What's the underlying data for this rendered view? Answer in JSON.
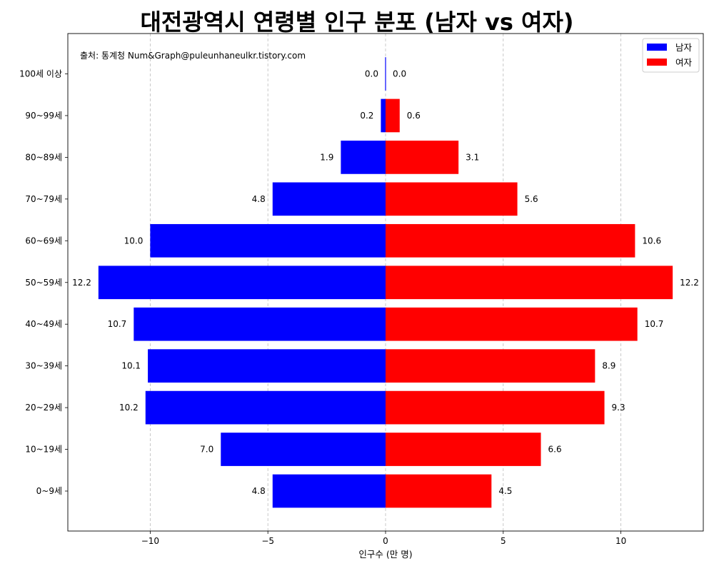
{
  "chart_data": {
    "type": "bar",
    "orientation": "horizontal",
    "title": "대전광역시 연령별 인구 분포 (남자 vs 여자)",
    "source": "출처: 통계청 Num&Graph@puleunhaneulkr.tistory.com",
    "xlabel": "인구수 (만 명)",
    "ylabel": "",
    "xlim": [
      -13.5,
      13.5
    ],
    "x_ticks": [
      -10,
      -5,
      0,
      5,
      10
    ],
    "x_tick_labels": [
      "−10",
      "−5",
      "0",
      "5",
      "10"
    ],
    "grid": "x-dashed",
    "legend_position": "top-right",
    "categories": [
      "0~9세",
      "10~19세",
      "20~29세",
      "30~39세",
      "40~49세",
      "50~59세",
      "60~69세",
      "70~79세",
      "80~89세",
      "90~99세",
      "100세 이상"
    ],
    "series": [
      {
        "name": "남자",
        "color": "#0000ff",
        "values": [
          4.8,
          7.0,
          10.2,
          10.1,
          10.7,
          12.2,
          10.0,
          4.8,
          1.9,
          0.2,
          0.0
        ],
        "labels": [
          "4.8",
          "7.0",
          "10.2",
          "10.1",
          "10.7",
          "12.2",
          "10.0",
          "4.8",
          "1.9",
          "0.2",
          "0.0"
        ]
      },
      {
        "name": "여자",
        "color": "#ff0000",
        "values": [
          4.5,
          6.6,
          9.3,
          8.9,
          10.7,
          12.2,
          10.6,
          5.6,
          3.1,
          0.6,
          0.0
        ],
        "labels": [
          "4.5",
          "6.6",
          "9.3",
          "8.9",
          "10.7",
          "12.2",
          "10.6",
          "5.6",
          "3.1",
          "0.6",
          "0.0"
        ]
      }
    ]
  }
}
